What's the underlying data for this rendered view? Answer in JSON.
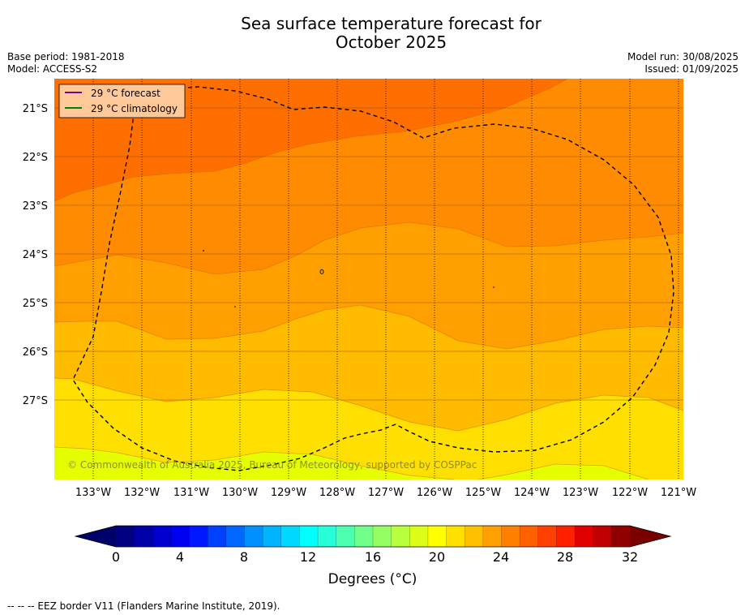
{
  "header": {
    "title_line1": "Sea surface temperature forecast for",
    "title_line2": "October 2025",
    "base_period": "Base period: 1981-2018",
    "model": "Model: ACCESS-S2",
    "model_run": "Model run: 30/08/2025",
    "issued": "Issued: 01/09/2025"
  },
  "map": {
    "lat_labels": [
      "21°S",
      "22°S",
      "23°S",
      "24°S",
      "25°S",
      "26°S",
      "27°S"
    ],
    "lon_labels": [
      "133°W",
      "132°W",
      "131°W",
      "130°W",
      "129°W",
      "128°W",
      "127°W",
      "126°W",
      "125°W",
      "124°W",
      "123°W",
      "122°W",
      "121°W"
    ],
    "legend": {
      "forecast_label": "29 °C  forecast",
      "climatology_label": "29 °C  climatology",
      "forecast_color": "#800080",
      "climatology_color": "#008000"
    },
    "copyright": "© Commonwealth of Australia 2025, Bureau of Meteorology, supported by COSPPac",
    "band_colors": [
      "#ff6f00",
      "#ff8c00",
      "#ffa000",
      "#ffbb00",
      "#ffe000",
      "#e6ff00"
    ]
  },
  "colorbar": {
    "tick_labels": [
      "0",
      "4",
      "8",
      "12",
      "16",
      "20",
      "24",
      "28",
      "32"
    ],
    "title": "Degrees (°C)",
    "colors": [
      "#000080",
      "#0000a8",
      "#0000d0",
      "#0000f0",
      "#0018ff",
      "#0040ff",
      "#0068ff",
      "#0090ff",
      "#00b4ff",
      "#00d8ff",
      "#00ffff",
      "#26ffd8",
      "#4cffb0",
      "#70ff88",
      "#94ff62",
      "#b8ff3c",
      "#dcff18",
      "#ffff00",
      "#ffe000",
      "#ffc000",
      "#ffa000",
      "#ff8000",
      "#ff6000",
      "#ff4000",
      "#ff2000",
      "#e00000",
      "#c00000",
      "#900000"
    ],
    "under_color": "#00006a",
    "over_color": "#7a0000"
  },
  "footer": {
    "eez_note": "--  --  -- EEZ border V11 (Flanders Marine Institute, 2019)."
  }
}
